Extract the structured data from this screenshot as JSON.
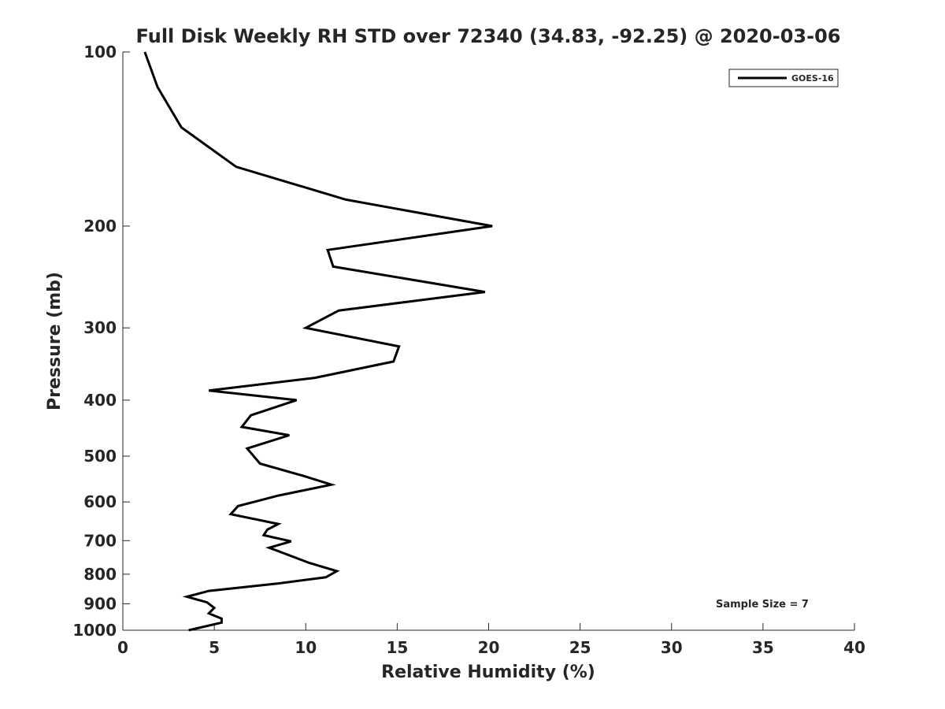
{
  "chart_data": {
    "type": "line",
    "title": "Full Disk Weekly RH STD over 72340 (34.83, -92.25) @ 2020-03-06",
    "xlabel": "Relative Humidity (%)",
    "ylabel": "Pressure (mb)",
    "xlim": [
      0,
      40
    ],
    "ylim": [
      100,
      1000
    ],
    "y_scale": "log",
    "y_reversed": true,
    "grid": false,
    "legend_position": "top-right",
    "x_ticks": [
      "0",
      "5",
      "10",
      "15",
      "20",
      "25",
      "30",
      "35",
      "40"
    ],
    "y_ticks": [
      "100",
      "200",
      "300",
      "400",
      "500",
      "600",
      "700",
      "800",
      "900",
      "1000"
    ],
    "annotation": "Sample Size = 7",
    "series": [
      {
        "name": "GOES-16",
        "color": "#000000",
        "points": [
          [
            1.2,
            100
          ],
          [
            1.9,
            115
          ],
          [
            3.2,
            135
          ],
          [
            6.2,
            158
          ],
          [
            12.2,
            180
          ],
          [
            20.2,
            200
          ],
          [
            11.2,
            220
          ],
          [
            11.5,
            235
          ],
          [
            19.8,
            260
          ],
          [
            11.8,
            280
          ],
          [
            10.0,
            300
          ],
          [
            15.1,
            323
          ],
          [
            14.8,
            343
          ],
          [
            10.5,
            366
          ],
          [
            4.7,
            385
          ],
          [
            9.5,
            400
          ],
          [
            7.0,
            425
          ],
          [
            6.5,
            445
          ],
          [
            9.1,
            460
          ],
          [
            6.8,
            485
          ],
          [
            7.5,
            515
          ],
          [
            9.8,
            540
          ],
          [
            11.4,
            560
          ],
          [
            8.5,
            585
          ],
          [
            6.3,
            610
          ],
          [
            5.9,
            630
          ],
          [
            8.5,
            655
          ],
          [
            7.9,
            670
          ],
          [
            7.7,
            685
          ],
          [
            9.2,
            702
          ],
          [
            8.0,
            720
          ],
          [
            9.0,
            740
          ],
          [
            10.2,
            765
          ],
          [
            11.7,
            790
          ],
          [
            11.1,
            810
          ],
          [
            8.5,
            830
          ],
          [
            4.7,
            855
          ],
          [
            3.5,
            875
          ],
          [
            4.6,
            895
          ],
          [
            5.0,
            915
          ],
          [
            4.7,
            935
          ],
          [
            5.4,
            955
          ],
          [
            5.4,
            970
          ],
          [
            3.6,
            1000
          ]
        ]
      }
    ]
  }
}
